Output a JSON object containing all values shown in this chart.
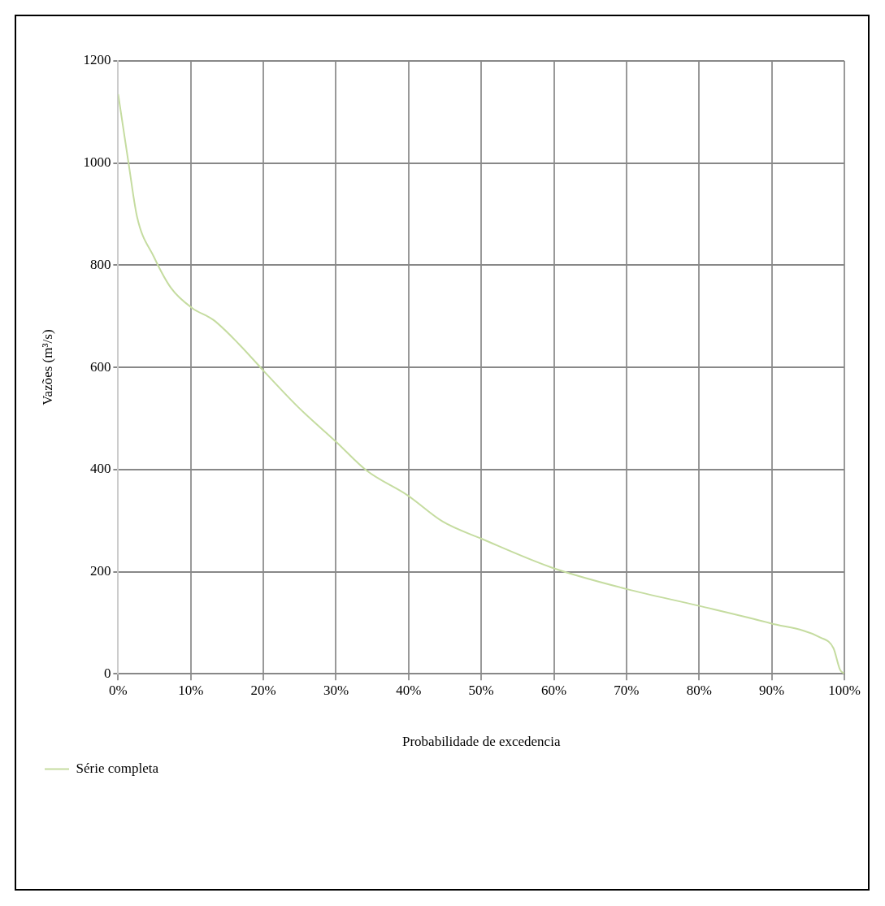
{
  "chart_data": {
    "type": "line",
    "xlabel": "Probabilidade de excedencia",
    "ylabel": "Vazões (m³/s)",
    "xlim": [
      0,
      100
    ],
    "xticks": [
      {
        "value": 0,
        "label": "0%"
      },
      {
        "value": 10,
        "label": "10%"
      },
      {
        "value": 20,
        "label": "20%"
      },
      {
        "value": 30,
        "label": "30%"
      },
      {
        "value": 40,
        "label": "40%"
      },
      {
        "value": 50,
        "label": "50%"
      },
      {
        "value": 60,
        "label": "60%"
      },
      {
        "value": 70,
        "label": "70%"
      },
      {
        "value": 80,
        "label": "80%"
      },
      {
        "value": 90,
        "label": "90%"
      },
      {
        "value": 100,
        "label": "100%"
      }
    ],
    "ylim": [
      0,
      1200
    ],
    "yticks": [
      0,
      200,
      400,
      600,
      800,
      1000,
      1200
    ],
    "grid": true,
    "legend": "bottom left",
    "marker": "none",
    "line_style": "solid",
    "series": [
      {
        "name": "Série completa",
        "color": "#c5dca0",
        "x": [
          0,
          1.4,
          2.6,
          4.9,
          7.3,
          10.2,
          13.1,
          16.6,
          20.1,
          24.8,
          30.1,
          34.2,
          39.9,
          44.7,
          50.1,
          59.7,
          70,
          80,
          89.8,
          96.7,
          98.5,
          99.4,
          100
        ],
        "values": [
          1135,
          1003,
          895,
          817,
          755,
          716,
          693,
          646,
          592,
          522,
          453,
          398,
          349,
          298,
          264,
          208,
          166,
          133,
          99,
          71,
          50,
          8,
          0
        ]
      }
    ]
  }
}
